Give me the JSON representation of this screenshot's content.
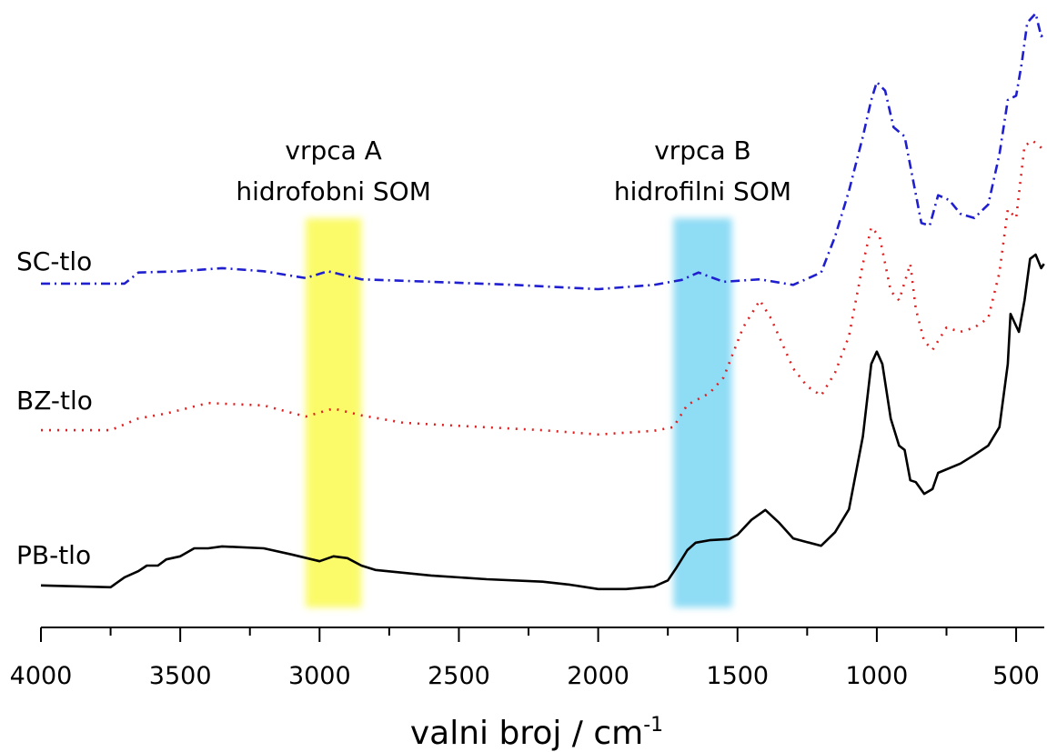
{
  "chart_data": {
    "type": "line",
    "xlabel": "valni broj / cm",
    "xlabel_sup": "-1",
    "xlim": [
      4000,
      400
    ],
    "ylim": [
      0,
      100
    ],
    "xticks": [
      4000,
      3500,
      3000,
      2500,
      2000,
      1500,
      1000,
      500
    ],
    "xticks_minor": [
      3750,
      3250,
      2750,
      2250,
      1750,
      1250,
      750
    ],
    "bands": [
      {
        "lines": [
          "vrpca A",
          "hidrofobni SOM"
        ],
        "from": 3050,
        "to": 2850,
        "color": "#fbfb6a"
      },
      {
        "lines": [
          "vrpca B",
          "hidrofilni SOM"
        ],
        "from": 1730,
        "to": 1520,
        "color": "#8fdcf5"
      }
    ],
    "x": [],
    "series": [
      {
        "name": "SC-tlo",
        "color": "#1f1fd0",
        "dash": "dash-dot",
        "x": [
          4000,
          3700,
          3650,
          3500,
          3350,
          3200,
          3050,
          2970,
          2850,
          2600,
          2300,
          2000,
          1800,
          1700,
          1640,
          1550,
          1420,
          1300,
          1200,
          1150,
          1100,
          1050,
          1020,
          1000,
          970,
          940,
          900,
          870,
          840,
          810,
          780,
          740,
          700,
          650,
          600,
          560,
          530,
          500,
          480,
          460,
          430,
          410,
          400
        ],
        "values": [
          55.6,
          55.6,
          57.4,
          57.6,
          58.1,
          57.6,
          56.5,
          57.6,
          56.3,
          55.9,
          55.4,
          54.7,
          55.4,
          56.2,
          57.4,
          55.9,
          56.3,
          55.4,
          57.4,
          63.2,
          70.6,
          79.4,
          85.3,
          88.2,
          86.8,
          80.9,
          79.4,
          72.4,
          65.4,
          65,
          69.9,
          69.1,
          66.9,
          66.2,
          68.4,
          76.5,
          85.3,
          86,
          91.2,
          97.8,
          99.3,
          95.6,
          95.9
        ]
      },
      {
        "name": "BZ-tlo",
        "color": "#e02020",
        "dash": "dotted",
        "x": [
          4000,
          3750,
          3650,
          3550,
          3400,
          3200,
          3050,
          2950,
          2850,
          2700,
          2500,
          2200,
          2000,
          1800,
          1730,
          1680,
          1600,
          1550,
          1480,
          1420,
          1380,
          1300,
          1250,
          1200,
          1150,
          1100,
          1050,
          1020,
          990,
          950,
          920,
          880,
          860,
          830,
          800,
          750,
          700,
          650,
          600,
          560,
          530,
          500,
          470,
          440,
          400
        ],
        "values": [
          31.9,
          31.9,
          33.8,
          34.6,
          36.3,
          35.9,
          34.1,
          35.4,
          34.3,
          33.1,
          32.6,
          31.9,
          31.2,
          31.8,
          32.4,
          36,
          37.9,
          40.4,
          48.5,
          52.9,
          50,
          41.9,
          39,
          37.5,
          41.2,
          47.1,
          58.8,
          64.7,
          63.2,
          54.4,
          52.9,
          58.8,
          51.5,
          46.3,
          44.9,
          48.5,
          47.8,
          48.5,
          50,
          57.4,
          67.6,
          66.2,
          77.9,
          78.7,
          77.2
        ]
      },
      {
        "name": "PB-tlo",
        "color": "#000000",
        "dash": "solid",
        "x": [
          4000,
          3750,
          3700,
          3650,
          3620,
          3580,
          3550,
          3500,
          3450,
          3400,
          3350,
          3200,
          3100,
          3000,
          2950,
          2900,
          2850,
          2800,
          2600,
          2400,
          2200,
          2100,
          2000,
          1900,
          1800,
          1750,
          1720,
          1680,
          1650,
          1600,
          1530,
          1500,
          1450,
          1400,
          1350,
          1300,
          1250,
          1200,
          1150,
          1100,
          1050,
          1020,
          1000,
          980,
          950,
          920,
          900,
          880,
          860,
          830,
          800,
          780,
          700,
          650,
          600,
          560,
          530,
          520,
          490,
          470,
          450,
          430,
          410,
          400
        ],
        "values": [
          6.8,
          6.5,
          8.1,
          9.1,
          10,
          10,
          11,
          11.5,
          12.8,
          12.8,
          13.1,
          12.8,
          11.8,
          10.7,
          11.5,
          11.2,
          10,
          9.3,
          8.4,
          7.8,
          7.4,
          6.9,
          6.2,
          6.2,
          6.6,
          7.6,
          9.6,
          12.5,
          13.7,
          14.1,
          14.3,
          15,
          17.4,
          19,
          16.9,
          14.4,
          13.8,
          13.2,
          15.4,
          19.1,
          30.9,
          42.6,
          44.6,
          42.6,
          33.8,
          29.4,
          28.7,
          23.8,
          23.5,
          21.6,
          22.4,
          25,
          26.5,
          27.9,
          29.4,
          32.4,
          42.6,
          50.7,
          47.8,
          52.9,
          59.6,
          60.3,
          58.1,
          58.8
        ]
      }
    ]
  }
}
